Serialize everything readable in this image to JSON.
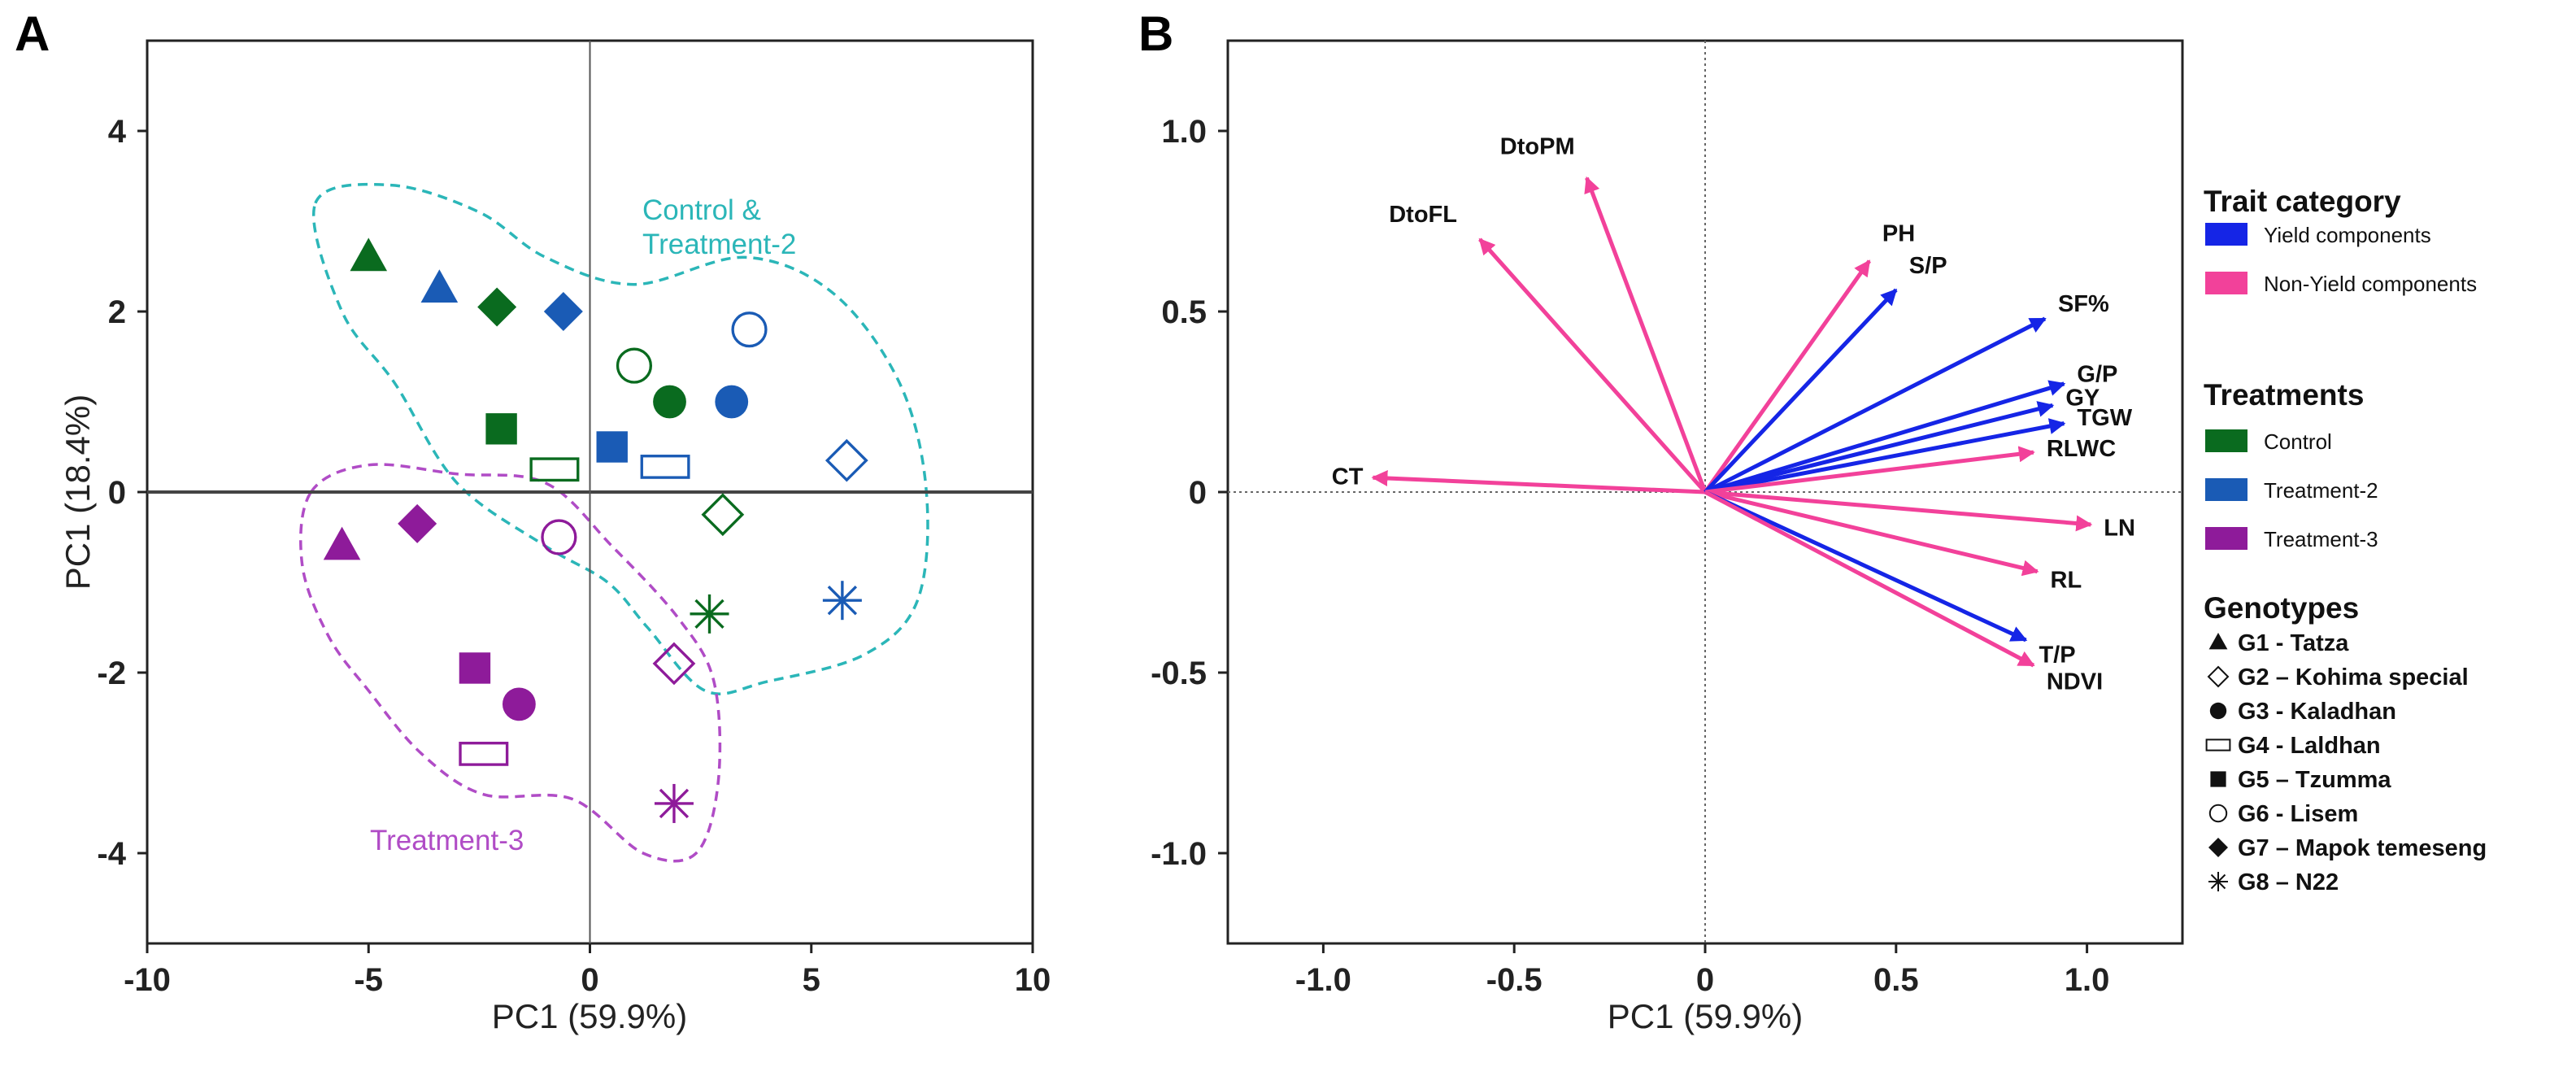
{
  "panels": {
    "a_letter": "A",
    "b_letter": "B"
  },
  "colors": {
    "control": "#0a6b1f",
    "treatment2": "#1a5bb5",
    "treatment3": "#8e1b9a",
    "ctrl_t2_hull": "#2bb6b8",
    "t3_hull": "#b04cc6",
    "yield": "#1525e6",
    "non_yield": "#f2419a"
  },
  "chart_data": [
    {
      "type": "scatter",
      "panel": "A",
      "xlabel": "PC1 (59.9%)",
      "ylabel": "PC1 (18.4%)",
      "xlim": [
        -10,
        10
      ],
      "ylim": [
        -5,
        5
      ],
      "xticks": [
        "-10",
        "-5",
        "0",
        "5",
        "10"
      ],
      "yticks": [
        "4",
        "2",
        "0",
        "-2",
        "-4"
      ],
      "series": [
        {
          "name": "Control",
          "color": "#0a6b1f",
          "points": [
            {
              "g": "G1",
              "x": -5.0,
              "y": 2.6
            },
            {
              "g": "G2",
              "x": 3.0,
              "y": -0.25
            },
            {
              "g": "G3",
              "x": 1.8,
              "y": 1.0
            },
            {
              "g": "G4",
              "x": -0.8,
              "y": 0.25
            },
            {
              "g": "G5",
              "x": -2.0,
              "y": 0.7
            },
            {
              "g": "G6",
              "x": 1.0,
              "y": 1.4
            },
            {
              "g": "G7",
              "x": -2.1,
              "y": 2.05
            },
            {
              "g": "G8",
              "x": 2.7,
              "y": -1.35
            }
          ]
        },
        {
          "name": "Treatment-2",
          "color": "#1a5bb5",
          "points": [
            {
              "g": "G1",
              "x": -3.4,
              "y": 2.25
            },
            {
              "g": "G2",
              "x": 5.8,
              "y": 0.35
            },
            {
              "g": "G3",
              "x": 3.2,
              "y": 1.0
            },
            {
              "g": "G4",
              "x": 1.7,
              "y": 0.28
            },
            {
              "g": "G5",
              "x": 0.5,
              "y": 0.5
            },
            {
              "g": "G6",
              "x": 3.6,
              "y": 1.8
            },
            {
              "g": "G7",
              "x": -0.6,
              "y": 2.0
            },
            {
              "g": "G8",
              "x": 5.7,
              "y": -1.2
            }
          ]
        },
        {
          "name": "Treatment-3",
          "color": "#8e1b9a",
          "points": [
            {
              "g": "G1",
              "x": -5.6,
              "y": -0.6
            },
            {
              "g": "G2",
              "x": 1.9,
              "y": -1.9
            },
            {
              "g": "G3",
              "x": -1.6,
              "y": -2.35
            },
            {
              "g": "G4",
              "x": -2.4,
              "y": -2.9
            },
            {
              "g": "G5",
              "x": -2.6,
              "y": -1.95
            },
            {
              "g": "G6",
              "x": -0.7,
              "y": -0.5
            },
            {
              "g": "G7",
              "x": -3.9,
              "y": -0.35
            },
            {
              "g": "G8",
              "x": 1.9,
              "y": -3.45
            }
          ]
        }
      ],
      "regions": [
        {
          "label_line1": "Control &",
          "label_line2": "Treatment-2",
          "color": "#2bb6b8",
          "outline": [
            [
              -6.2,
              3.2
            ],
            [
              -4.5,
              3.4
            ],
            [
              -2.5,
              3.1
            ],
            [
              -1.0,
              2.6
            ],
            [
              1.0,
              2.3
            ],
            [
              3.5,
              2.6
            ],
            [
              5.5,
              2.2
            ],
            [
              7.0,
              1.2
            ],
            [
              7.6,
              0.0
            ],
            [
              7.4,
              -1.2
            ],
            [
              6.2,
              -1.8
            ],
            [
              4.0,
              -2.1
            ],
            [
              2.6,
              -2.2
            ],
            [
              1.3,
              -1.5
            ],
            [
              0.4,
              -1.0
            ],
            [
              -1.0,
              -0.6
            ],
            [
              -3.0,
              0.1
            ],
            [
              -4.4,
              1.2
            ],
            [
              -5.6,
              2.0
            ]
          ]
        },
        {
          "label": "Treatment-3",
          "color": "#b04cc6",
          "outline": [
            [
              -6.3,
              0.0
            ],
            [
              -5.0,
              0.3
            ],
            [
              -3.0,
              0.2
            ],
            [
              -1.0,
              0.1
            ],
            [
              0.5,
              -0.6
            ],
            [
              2.0,
              -1.4
            ],
            [
              2.8,
              -2.1
            ],
            [
              2.9,
              -3.2
            ],
            [
              2.4,
              -4.0
            ],
            [
              1.2,
              -4.0
            ],
            [
              -0.4,
              -3.4
            ],
            [
              -2.4,
              -3.35
            ],
            [
              -3.8,
              -2.9
            ],
            [
              -5.0,
              -2.2
            ],
            [
              -5.9,
              -1.6
            ],
            [
              -6.5,
              -0.8
            ]
          ]
        }
      ]
    },
    {
      "type": "biplot",
      "panel": "B",
      "xlabel": "PC1 (59.9%)",
      "ylabel": "",
      "xlim": [
        -1.25,
        1.25
      ],
      "ylim": [
        -1.25,
        1.25
      ],
      "xticks": [
        "-1.0",
        "-0.5",
        "0",
        "0.5",
        "1.0"
      ],
      "yticks": [
        "1.0",
        "0.5",
        "0",
        "-0.5",
        "-1.0"
      ],
      "vectors": [
        {
          "name": "DtoPM",
          "x": -0.31,
          "y": 0.87,
          "category": "non_yield"
        },
        {
          "name": "DtoFL",
          "x": -0.59,
          "y": 0.7,
          "category": "non_yield"
        },
        {
          "name": "CT",
          "x": -0.87,
          "y": 0.04,
          "category": "non_yield"
        },
        {
          "name": "PH",
          "x": 0.43,
          "y": 0.64,
          "category": "non_yield"
        },
        {
          "name": "S/P",
          "x": 0.5,
          "y": 0.56,
          "category": "yield"
        },
        {
          "name": "SF%",
          "x": 0.89,
          "y": 0.48,
          "category": "yield"
        },
        {
          "name": "G/P",
          "x": 0.94,
          "y": 0.3,
          "category": "yield"
        },
        {
          "name": "GY",
          "x": 0.91,
          "y": 0.24,
          "category": "yield"
        },
        {
          "name": "TGW",
          "x": 0.94,
          "y": 0.19,
          "category": "yield"
        },
        {
          "name": "RLWC",
          "x": 0.86,
          "y": 0.11,
          "category": "non_yield"
        },
        {
          "name": "LN",
          "x": 1.01,
          "y": -0.09,
          "category": "non_yield"
        },
        {
          "name": "RL",
          "x": 0.87,
          "y": -0.22,
          "category": "non_yield"
        },
        {
          "name": "T/P",
          "x": 0.84,
          "y": -0.41,
          "category": "yield"
        },
        {
          "name": "NDVI",
          "x": 0.86,
          "y": -0.48,
          "category": "non_yield"
        }
      ]
    }
  ],
  "legend": {
    "trait_title": "Trait category",
    "trait_items": [
      {
        "label": "Yield components",
        "color": "#1525e6"
      },
      {
        "label": "Non-Yield components",
        "color": "#f2419a"
      }
    ],
    "treat_title": "Treatments",
    "treat_items": [
      {
        "label": "Control",
        "color": "#0a6b1f"
      },
      {
        "label": "Treatment-2",
        "color": "#1a5bb5"
      },
      {
        "label": "Treatment-3",
        "color": "#8e1b9a"
      }
    ],
    "geno_title": "Genotypes",
    "geno_items": [
      {
        "code": "G1",
        "label": "G1 - Tatza",
        "marker": "triangle"
      },
      {
        "code": "G2",
        "label": "G2 – Kohima special",
        "marker": "diamond-open"
      },
      {
        "code": "G3",
        "label": "G3 - Kaladhan",
        "marker": "circle"
      },
      {
        "code": "G4",
        "label": "G4 - Laldhan",
        "marker": "rect-open"
      },
      {
        "code": "G5",
        "label": "G5 – Tzumma",
        "marker": "square"
      },
      {
        "code": "G6",
        "label": "G6 - Lisem",
        "marker": "circle-open"
      },
      {
        "code": "G7",
        "label": "G7 – Mapok temeseng",
        "marker": "diamond"
      },
      {
        "code": "G8",
        "label": "G8 – N22",
        "marker": "star"
      }
    ]
  }
}
